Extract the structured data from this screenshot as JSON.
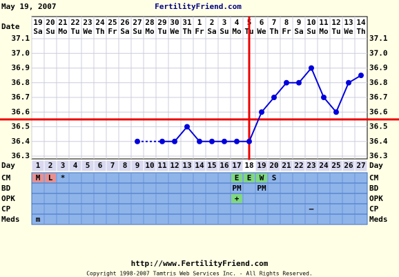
{
  "header": {
    "date": "May 19, 2007",
    "site": "FertilityFriend.com"
  },
  "chart_data": {
    "type": "line",
    "x_label": "Date",
    "day_label": "Day",
    "categories": [
      "19",
      "20",
      "21",
      "22",
      "23",
      "24",
      "25",
      "26",
      "27",
      "28",
      "29",
      "30",
      "31",
      "1",
      "2",
      "3",
      "4",
      "5",
      "6",
      "7",
      "8",
      "9",
      "10",
      "11",
      "12",
      "13",
      "14"
    ],
    "weekdays": [
      "Sa",
      "Su",
      "Mo",
      "Tu",
      "We",
      "Th",
      "Fr",
      "Sa",
      "Su",
      "Mo",
      "Tu",
      "We",
      "Th",
      "Fr",
      "Sa",
      "Su",
      "Mo",
      "Tu",
      "We",
      "Th",
      "Fr",
      "Sa",
      "Su",
      "Mo",
      "Tu",
      "We",
      "Th"
    ],
    "cycle_days": [
      1,
      2,
      3,
      4,
      5,
      6,
      7,
      8,
      9,
      10,
      11,
      12,
      13,
      14,
      15,
      16,
      17,
      18,
      19,
      20,
      21,
      22,
      23,
      24,
      25,
      26,
      27
    ],
    "values": [
      null,
      null,
      null,
      null,
      null,
      null,
      null,
      null,
      36.4,
      null,
      36.4,
      36.4,
      36.5,
      36.4,
      36.4,
      36.4,
      36.4,
      36.4,
      36.6,
      36.7,
      36.8,
      36.8,
      36.9,
      36.7,
      36.6,
      36.8,
      36.85
    ],
    "color": "#0000dd",
    "ylim": [
      36.3,
      37.1
    ],
    "yticks": [
      36.3,
      36.4,
      36.5,
      36.6,
      36.7,
      36.8,
      36.9,
      {
        "value": 37,
        "label": "37.0"
      },
      37.1
    ],
    "grid": true,
    "coverline": 36.55,
    "ovulation_day": 18,
    "marker_color": "#ee0000",
    "rows": [
      {
        "label": "CM",
        "entries": [
          {
            "day": 1,
            "text": "M",
            "color": "#e89090"
          },
          {
            "day": 2,
            "text": "L",
            "color": "#e89090"
          },
          {
            "day": 3,
            "text": "*"
          },
          {
            "day": 17,
            "text": "E",
            "color": "#80d880"
          },
          {
            "day": 18,
            "text": "E",
            "color": "#80d880"
          },
          {
            "day": 19,
            "text": "W",
            "color": "#80d880"
          },
          {
            "day": 20,
            "text": "S"
          }
        ]
      },
      {
        "label": "BD",
        "entries": [
          {
            "day": 17,
            "text": "PM"
          },
          {
            "day": 19,
            "text": "PM"
          }
        ]
      },
      {
        "label": "OPK",
        "entries": [
          {
            "day": 17,
            "text": "+",
            "color": "#80d880"
          }
        ]
      },
      {
        "label": "CP",
        "entries": [
          {
            "day": 23,
            "text": "–"
          }
        ]
      },
      {
        "label": "Meds",
        "entries": [
          {
            "day": 1,
            "text": "m"
          }
        ]
      }
    ]
  },
  "footer": {
    "url": "http://www.FertilityFriend.com",
    "copyright": "Copyright 1998-2007 Tamtris Web Services Inc. - All Rights Reserved."
  }
}
